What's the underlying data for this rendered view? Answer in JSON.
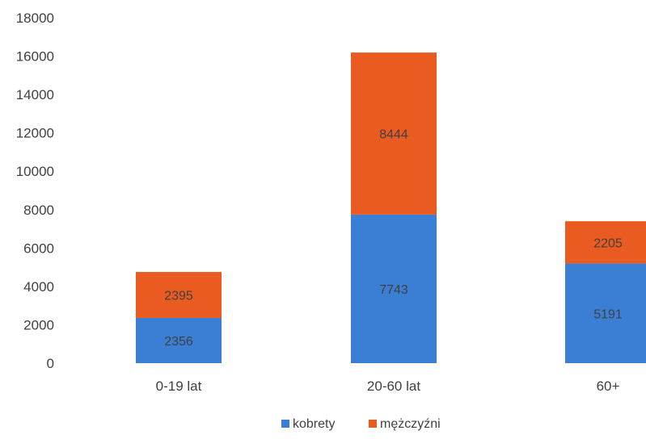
{
  "chart_data": {
    "type": "bar",
    "stacked": true,
    "categories": [
      "0-19 lat",
      "20-60 lat",
      "60+"
    ],
    "series": [
      {
        "name": "kobrety",
        "values": [
          2356,
          7743,
          5191
        ],
        "color": "#3b7fd4"
      },
      {
        "name": "mężczyźni",
        "values": [
          2395,
          8444,
          2205
        ],
        "color": "#ea5b22"
      }
    ],
    "ylim": [
      0,
      18000
    ],
    "yticks": [
      0,
      2000,
      4000,
      6000,
      8000,
      10000,
      12000,
      14000,
      16000,
      18000
    ],
    "title": "",
    "xlabel": "",
    "ylabel": "",
    "grid": false,
    "legend_position": "bottom"
  }
}
